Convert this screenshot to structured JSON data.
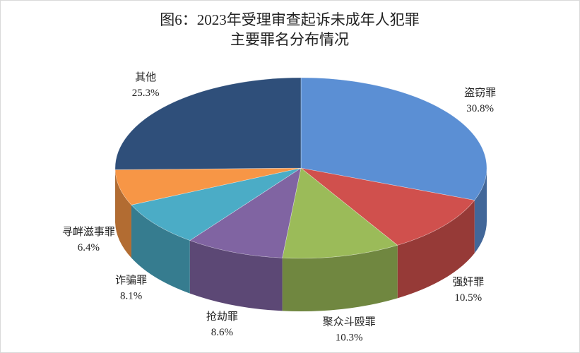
{
  "chart_data": {
    "type": "pie3d",
    "title": "图6：2023年受理审查起诉未成年人犯罪",
    "subtitle": "主要罪名分布情况",
    "categories": [
      "盗窃罪",
      "强奸罪",
      "聚众斗殴罪",
      "抢劫罪",
      "诈骗罪",
      "寻衅滋事罪",
      "其他"
    ],
    "values": [
      30.8,
      10.5,
      10.3,
      8.6,
      8.1,
      6.4,
      25.3
    ],
    "value_labels": [
      "30.8%",
      "10.5%",
      "10.3%",
      "8.6%",
      "8.1%",
      "6.4%",
      "25.3%"
    ],
    "colors": [
      "#5b8fd4",
      "#d0504d",
      "#9bbb59",
      "#8064a2",
      "#4bacc6",
      "#f79646",
      "#2f4f7a"
    ]
  }
}
